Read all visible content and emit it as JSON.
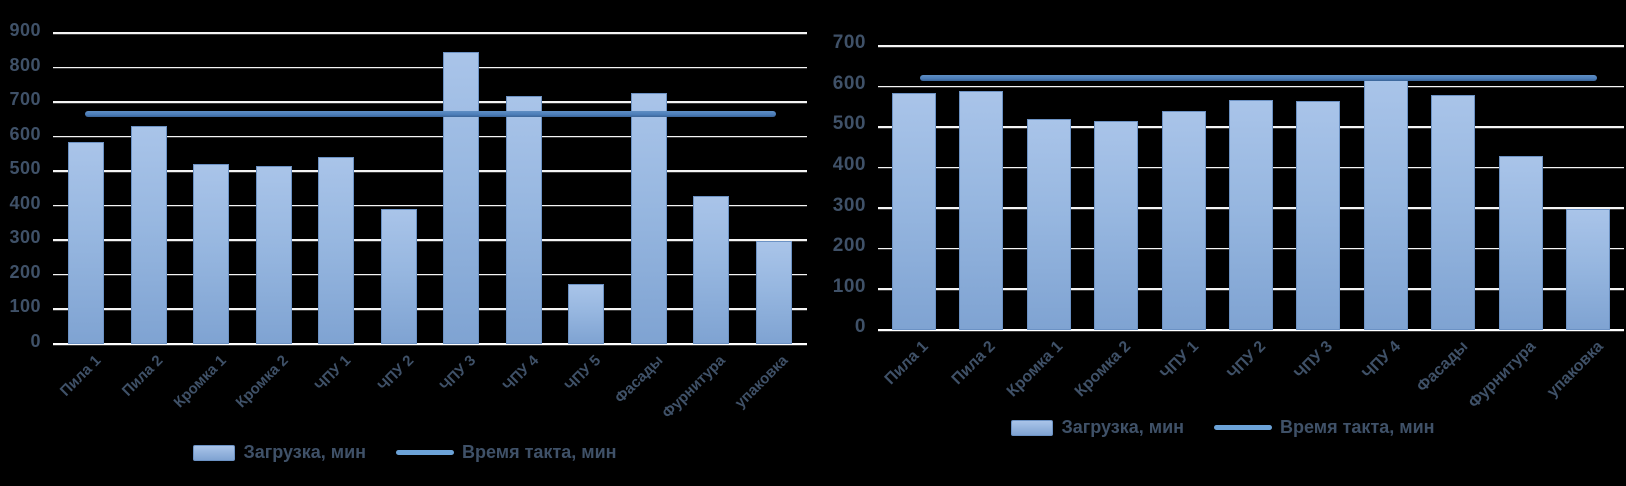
{
  "colors": {
    "background": "#000000",
    "bar_fill_top": "#a9c4e9",
    "bar_fill_bottom": "#7fa3d2",
    "bar_border": "#6c92c4",
    "takt_line": "#4d7fba",
    "legend_line_swatch": "#6ca3d8",
    "gridline": "#f4f4f4",
    "tick_text": "#3f5168"
  },
  "legend": {
    "load_label": "Загрузка, мин",
    "takt_label": "Время такта, мин"
  },
  "chart_data": [
    {
      "type": "bar",
      "title": "",
      "xlabel": "",
      "ylabel": "",
      "grid": true,
      "legend_position": "bottom",
      "ylim": [
        0,
        900
      ],
      "ytick_step": 100,
      "categories": [
        "Пила 1",
        "Пила 2",
        "Кромка 1",
        "Кромка 2",
        "ЧПУ 1",
        "ЧПУ 2",
        "ЧПУ 3",
        "ЧПУ 4",
        "ЧПУ 5",
        "Фасады",
        "Фурнитура",
        "упаковка"
      ],
      "series": [
        {
          "name": "Загрузка, мин",
          "type": "bar",
          "values": [
            585,
            630,
            520,
            515,
            540,
            390,
            845,
            718,
            175,
            726,
            428,
            297
          ]
        },
        {
          "name": "Время такта, мин",
          "type": "line",
          "value": 665
        }
      ]
    },
    {
      "type": "bar",
      "title": "",
      "xlabel": "",
      "ylabel": "",
      "grid": true,
      "legend_position": "bottom",
      "ylim": [
        0,
        700
      ],
      "ytick_step": 100,
      "categories": [
        "Пила 1",
        "Пила 2",
        "Кромка 1",
        "Кромка 2",
        "ЧПУ 1",
        "ЧПУ 2",
        "ЧПУ 3",
        "ЧПУ 4",
        "Фасады",
        "Фурнитура",
        "упаковка"
      ],
      "series": [
        {
          "name": "Загрузка, мин",
          "type": "bar",
          "values": [
            585,
            590,
            520,
            515,
            540,
            568,
            565,
            618,
            580,
            430,
            298
          ]
        },
        {
          "name": "Время такта, мин",
          "type": "line",
          "value": 620
        }
      ]
    }
  ]
}
